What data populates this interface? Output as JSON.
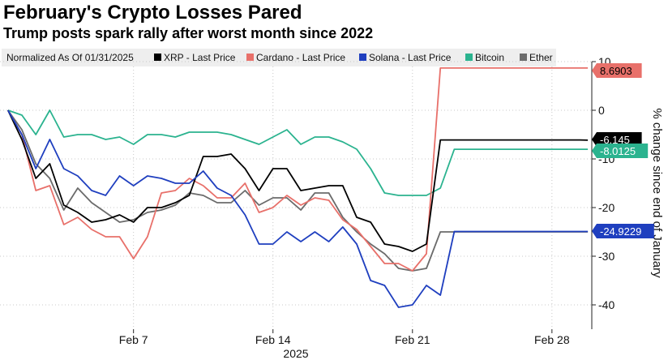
{
  "header": {
    "title": "February's Crypto Losses Pared",
    "subtitle": "Trump posts spark rally after worst month since 2022"
  },
  "colors": {
    "XRP": "#000000",
    "Cardano": "#e8706a",
    "Solana": "#1f3fbf",
    "Bitcoin": "#2bb38f",
    "Ether": "#6b6b6b",
    "legend_bg": "#eeeeee"
  },
  "chart_data": {
    "type": "line",
    "legend_note": "Normalized As Of 01/31/2025",
    "legend_placement": "top",
    "ylabel": "% change since end of January",
    "xlabel_year": "2025",
    "x_ticks": [
      {
        "label": "Feb 7",
        "x": 7
      },
      {
        "label": "Feb 14",
        "x": 14
      },
      {
        "label": "Feb 21",
        "x": 21
      },
      {
        "label": "Feb 28",
        "x": 28
      }
    ],
    "y_ticks": [
      10,
      0,
      -10,
      -20,
      -30,
      -40
    ],
    "xlim": [
      0.3,
      30
    ],
    "ylim": [
      -45,
      10
    ],
    "grid": true,
    "x": [
      0.7,
      1.4,
      2.1,
      2.8,
      3.5,
      4.2,
      4.9,
      5.6,
      6.3,
      7.0,
      7.7,
      8.4,
      9.1,
      9.8,
      10.5,
      11.2,
      11.9,
      12.6,
      13.3,
      14.0,
      14.7,
      15.4,
      16.1,
      16.8,
      17.5,
      18.2,
      18.9,
      19.6,
      20.3,
      21.0,
      21.7,
      22.4,
      23.1,
      23.8,
      24.5,
      25.2,
      25.9,
      26.6,
      27.3,
      28.0,
      28.7,
      29.4,
      29.8
    ],
    "series": [
      {
        "name": "XRP - Last Price",
        "color_key": "XRP",
        "end_label": "-6.145",
        "values": [
          0,
          -6,
          -14,
          -11,
          -19.5,
          -21,
          -23,
          -22.5,
          -21.5,
          -23,
          -20,
          -20,
          -19,
          -17.5,
          -9.5,
          -9.5,
          -9,
          -12,
          -16.5,
          -12,
          -12,
          -16.5,
          -16,
          -15.5,
          -15.5,
          -22,
          -23,
          -27.5,
          -28,
          -29,
          -27.5,
          -6.1,
          -6.1,
          -6.1,
          -6.1,
          -6.1,
          -6.1,
          -6.1,
          -6.1,
          -6.1,
          -6.1,
          -6.1,
          -6.145
        ]
      },
      {
        "name": "Cardano - Last Price",
        "color_key": "Cardano",
        "end_label": "8.6903",
        "values": [
          0,
          -5,
          -16.5,
          -15.5,
          -23.5,
          -22,
          -24.5,
          -26,
          -26,
          -30.5,
          -26,
          -17,
          -16.5,
          -14,
          -15.5,
          -18,
          -18,
          -15,
          -21,
          -20,
          -17.5,
          -19.5,
          -18,
          -18.5,
          -22.5,
          -24.5,
          -28,
          -31.5,
          -31.5,
          -33,
          -29.5,
          8.69,
          8.69,
          8.69,
          8.69,
          8.69,
          8.69,
          8.69,
          8.69,
          8.69,
          8.69,
          8.69,
          8.6903
        ]
      },
      {
        "name": "Solana - Last Price",
        "color_key": "Solana",
        "end_label": "-24.9229",
        "values": [
          0,
          -5,
          -12,
          -6,
          -12,
          -13.5,
          -16.5,
          -17.5,
          -13.5,
          -15.5,
          -13.5,
          -14,
          -15,
          -15,
          -12.5,
          -16,
          -17.5,
          -21.5,
          -27.5,
          -27.5,
          -25,
          -27,
          -25,
          -27,
          -24,
          -27.5,
          -35,
          -36,
          -40.5,
          -40,
          -36,
          -38,
          -24.92,
          -24.92,
          -24.92,
          -24.92,
          -24.92,
          -24.92,
          -24.92,
          -24.92,
          -24.92,
          -24.92,
          -24.9229
        ]
      },
      {
        "name": "Bitcoin",
        "color_key": "Bitcoin",
        "end_label": "-8.0125",
        "values": [
          0,
          -1,
          -5,
          0,
          -5.5,
          -5,
          -5,
          -6,
          -5.5,
          -7,
          -5,
          -5,
          -5.5,
          -4.5,
          -4.5,
          -4.5,
          -5,
          -6,
          -7,
          -5.5,
          -4,
          -7,
          -5.5,
          -5.5,
          -6.5,
          -8,
          -12,
          -17,
          -17.5,
          -17.5,
          -17.5,
          -16,
          -8.01,
          -8.01,
          -8.01,
          -8.01,
          -8.01,
          -8.01,
          -8.01,
          -8.01,
          -8.01,
          -8.01,
          -8.0125
        ]
      },
      {
        "name": "Ether",
        "color_key": "Ether",
        "end_label": "",
        "values": [
          0,
          -4,
          -11,
          -14,
          -20.5,
          -16,
          -19,
          -21,
          -23,
          -22.5,
          -21,
          -20.5,
          -19.5,
          -17,
          -17.5,
          -19,
          -19,
          -16.5,
          -19.5,
          -18,
          -18,
          -20.5,
          -17,
          -17,
          -22,
          -25,
          -27.5,
          -29.5,
          -32.5,
          -33,
          -32.5,
          -25,
          -25,
          -25,
          -25,
          -25,
          -25,
          -25,
          -25,
          -25,
          -25,
          -25,
          -25
        ]
      }
    ]
  }
}
